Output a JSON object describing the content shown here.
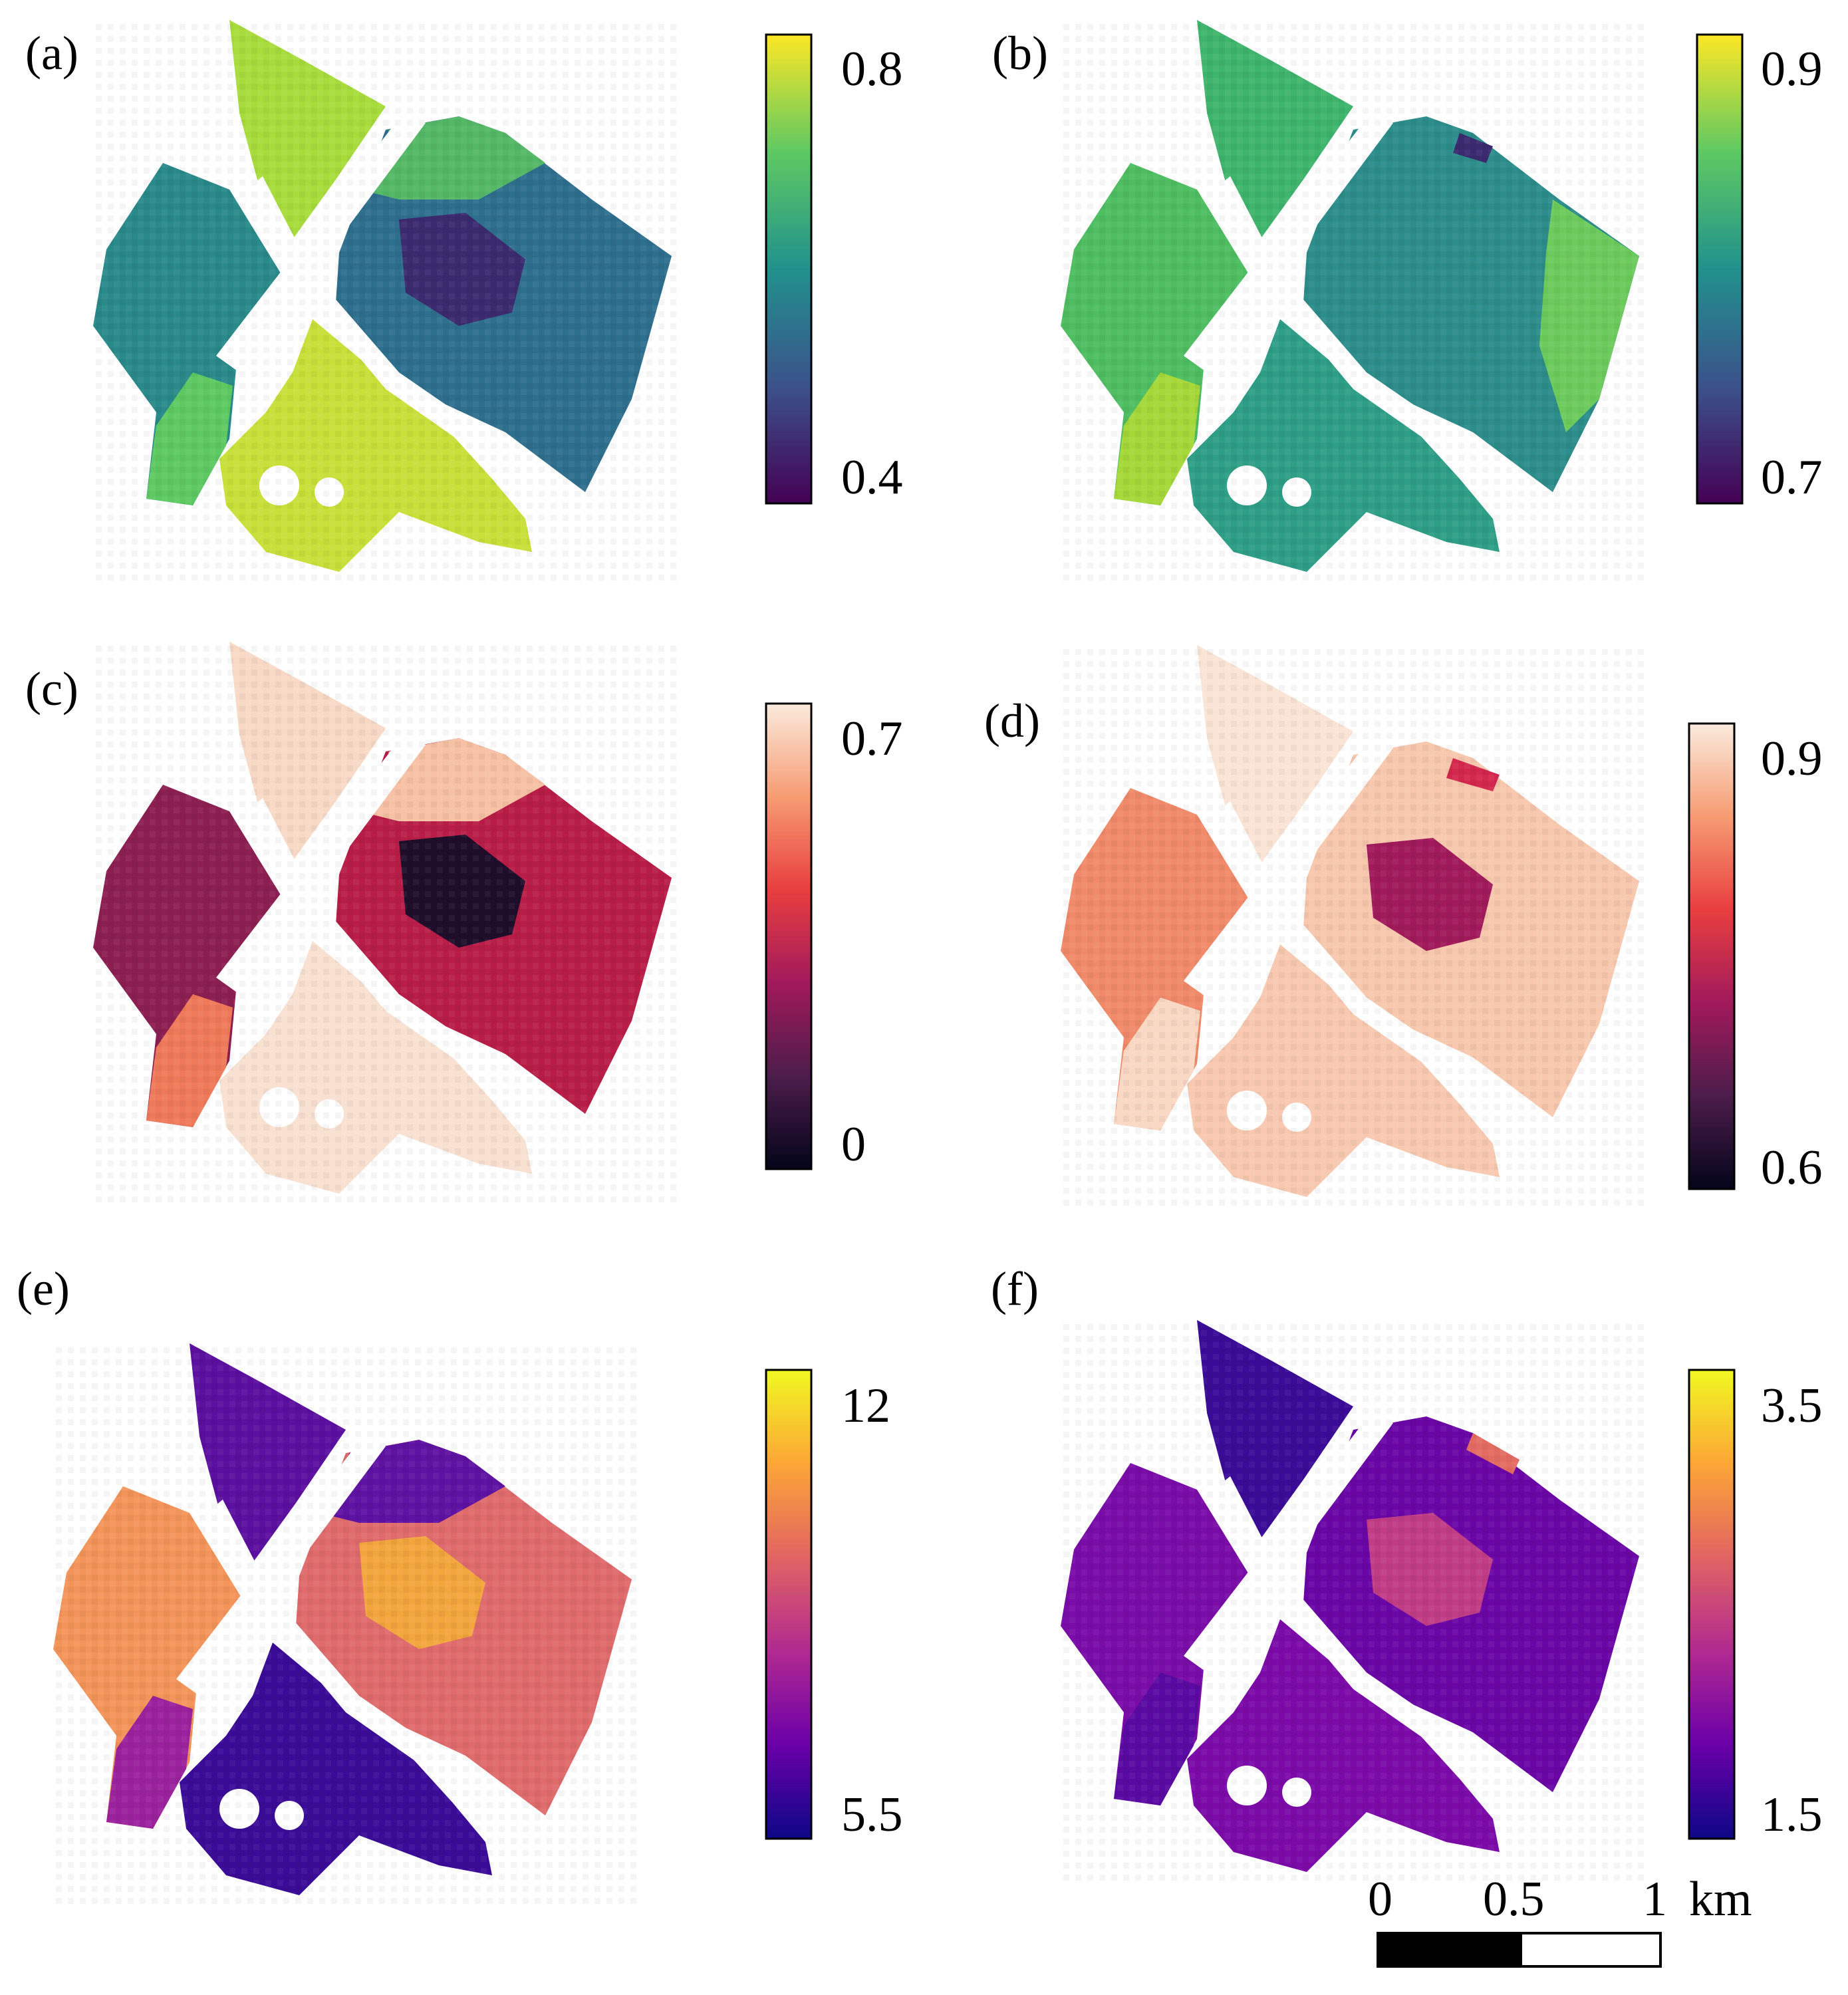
{
  "panels": [
    {
      "id": "a",
      "label": "(a)",
      "colorbar": {
        "max_label": "0.8",
        "min_label": "0.4",
        "colormap": "viridis",
        "stops": [
          "#440154",
          "#3b528b",
          "#21918c",
          "#5ec962",
          "#fde725"
        ]
      }
    },
    {
      "id": "b",
      "label": "(b)",
      "colorbar": {
        "max_label": "0.9",
        "min_label": "0.7",
        "colormap": "viridis",
        "stops": [
          "#440154",
          "#3b528b",
          "#21918c",
          "#5ec962",
          "#fde725"
        ]
      }
    },
    {
      "id": "c",
      "label": "(c)",
      "colorbar": {
        "max_label": "0.7",
        "min_label": "0",
        "colormap": "rocket",
        "stops": [
          "#03051a",
          "#4c1d4b",
          "#a11a5b",
          "#e83f3f",
          "#f69c73",
          "#faebdd"
        ]
      }
    },
    {
      "id": "d",
      "label": "(d)",
      "colorbar": {
        "max_label": "0.9",
        "min_label": "0.6",
        "colormap": "rocket",
        "stops": [
          "#03051a",
          "#4c1d4b",
          "#a11a5b",
          "#e83f3f",
          "#f69c73",
          "#faebdd"
        ]
      }
    },
    {
      "id": "e",
      "label": "(e)",
      "colorbar": {
        "max_label": "12",
        "min_label": "5.5",
        "colormap": "plasma",
        "stops": [
          "#0d0887",
          "#6a00a8",
          "#b12a90",
          "#e16462",
          "#fca636",
          "#f0f921"
        ]
      }
    },
    {
      "id": "f",
      "label": "(f)",
      "colorbar": {
        "max_label": "3.5",
        "min_label": "1.5",
        "colormap": "plasma",
        "stops": [
          "#0d0887",
          "#6a00a8",
          "#b12a90",
          "#e16462",
          "#fca636",
          "#f0f921"
        ]
      }
    }
  ],
  "scale_bar": {
    "label_0": "0",
    "label_mid": "0.5",
    "label_end": "1",
    "unit": "km"
  }
}
